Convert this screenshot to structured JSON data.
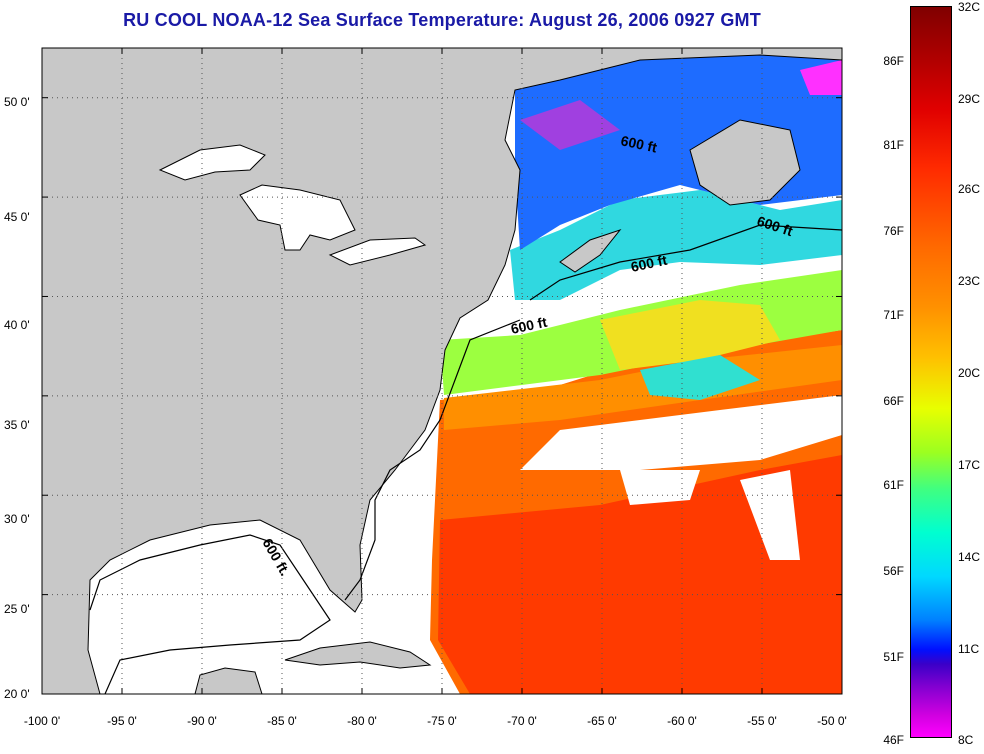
{
  "title": "RU COOL  NOAA-12  Sea Surface Temperature:  August 26, 2006 0927 GMT",
  "map": {
    "lon_labels": [
      "-100 0'",
      "-95 0'",
      "-90 0'",
      "-85 0'",
      "-80 0'",
      "-75 0'",
      "-70 0'",
      "-65 0'",
      "-60 0'",
      "-55 0'",
      "-50 0'"
    ],
    "lon_values": [
      -100,
      -95,
      -90,
      -85,
      -80,
      -75,
      -70,
      -65,
      -60,
      -55,
      -50
    ],
    "lat_labels": [
      "50 0'",
      "45 0'",
      "40 0'",
      "35 0'",
      "30 0'",
      "25 0'",
      "20 0'"
    ],
    "lat_values": [
      50,
      45,
      40,
      35,
      30,
      25,
      20
    ],
    "lon_range": [
      -100,
      -50
    ],
    "lat_range": [
      20,
      52.5
    ],
    "contour_labels": [
      "600 ft",
      "600 ft",
      "600 ft",
      "600 ft",
      "600 ft."
    ],
    "colors": {
      "land": "#c8c8c8",
      "no_data": "#ffffff",
      "grid": "#555555"
    }
  },
  "colorbar": {
    "fahrenheit": [
      "86F",
      "81F",
      "76F",
      "71F",
      "66F",
      "61F",
      "56F",
      "51F",
      "46F"
    ],
    "celsius": [
      "32C",
      "29C",
      "26C",
      "23C",
      "20C",
      "17C",
      "14C",
      "11C",
      "8C"
    ],
    "range_c": [
      8,
      32
    ]
  }
}
